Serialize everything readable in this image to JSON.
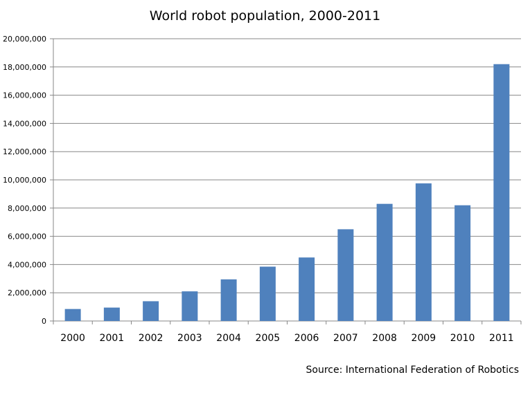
{
  "chart_data": {
    "type": "bar",
    "title": "World robot population, 2000-2011",
    "source": "Source: International Federation of Robotics",
    "xlabel": "",
    "ylabel": "",
    "categories": [
      "2000",
      "2001",
      "2002",
      "2003",
      "2004",
      "2005",
      "2006",
      "2007",
      "2008",
      "2009",
      "2010",
      "2011"
    ],
    "values": [
      850000,
      950000,
      1400000,
      2100000,
      2950000,
      3850000,
      4500000,
      6500000,
      8300000,
      9750000,
      8200000,
      18200000
    ],
    "ylim": [
      0,
      20000000
    ],
    "yticks": [
      0,
      2000000,
      4000000,
      6000000,
      8000000,
      10000000,
      12000000,
      14000000,
      16000000,
      18000000,
      20000000
    ],
    "ytick_labels": [
      "0",
      "2,000,000",
      "4,000,000",
      "6,000,000",
      "8,000,000",
      "10,000,000",
      "12,000,000",
      "14,000,000",
      "16,000,000",
      "18,000,000",
      "20,000,000"
    ],
    "grid": true,
    "legend": "none",
    "bar_color": "#4f81bd",
    "grid_color": "#878787",
    "axis_color": "#878787"
  }
}
